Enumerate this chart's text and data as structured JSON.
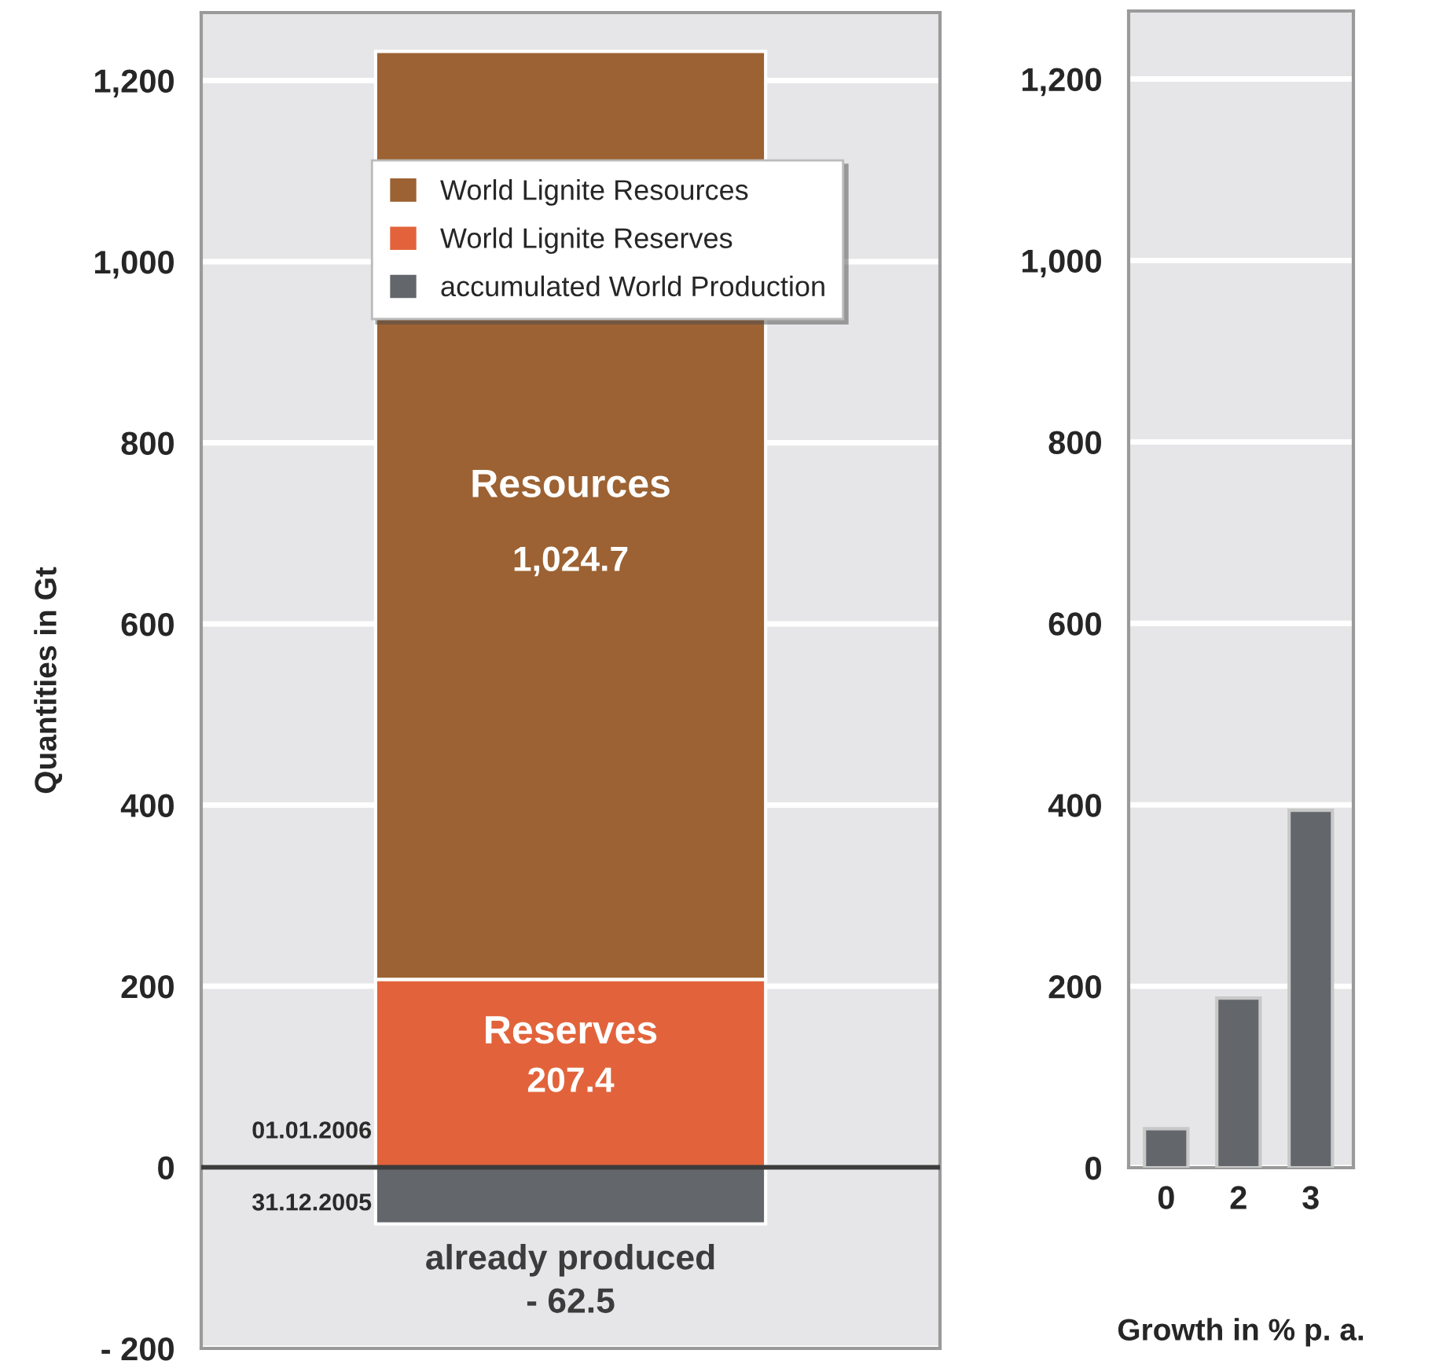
{
  "chart_data": [
    {
      "type": "bar",
      "ylabel": "Quantities in Gt",
      "categories": [
        null
      ],
      "stacked": true,
      "series": [
        {
          "name": "accumulated World Production",
          "color": "#63676b",
          "values": [
            -62.5
          ],
          "value_labels": [
            "- 62.5"
          ]
        },
        {
          "name": "World Lignite Reserves",
          "color": "#e2633b",
          "values": [
            207.4
          ],
          "value_labels": [
            "207.4"
          ]
        },
        {
          "name": "World Lignite Resources",
          "color": "#9c6233",
          "values": [
            1024.7
          ],
          "value_labels": [
            "1,024.7"
          ]
        }
      ],
      "ylim": [
        -200,
        1275
      ],
      "yticks": [
        {
          "value": -200,
          "label": "- 200"
        },
        0,
        200,
        400,
        600,
        800,
        {
          "value": 1000,
          "label": "1,000"
        },
        {
          "value": 1200,
          "label": "1,200"
        }
      ],
      "ref_lines": [
        {
          "axis": "y",
          "value": 0,
          "color": "#3c3c3c"
        }
      ],
      "annotations": [
        "Resources",
        "Reserves",
        "already produced",
        "01.01.2006",
        "31.12.2005"
      ],
      "grid": "y",
      "legend": "top"
    },
    {
      "type": "bar",
      "xlabel": "Growth in % p. a.",
      "categories": [
        "0",
        "2",
        "3"
      ],
      "values": [
        43,
        187,
        394
      ],
      "color": "#63676b",
      "ylim": [
        0,
        1275
      ],
      "yticks": [
        0,
        200,
        400,
        600,
        800,
        {
          "value": 1000,
          "label": "1,000"
        },
        {
          "value": 1200,
          "label": "1,200"
        }
      ],
      "grid": "y"
    }
  ]
}
